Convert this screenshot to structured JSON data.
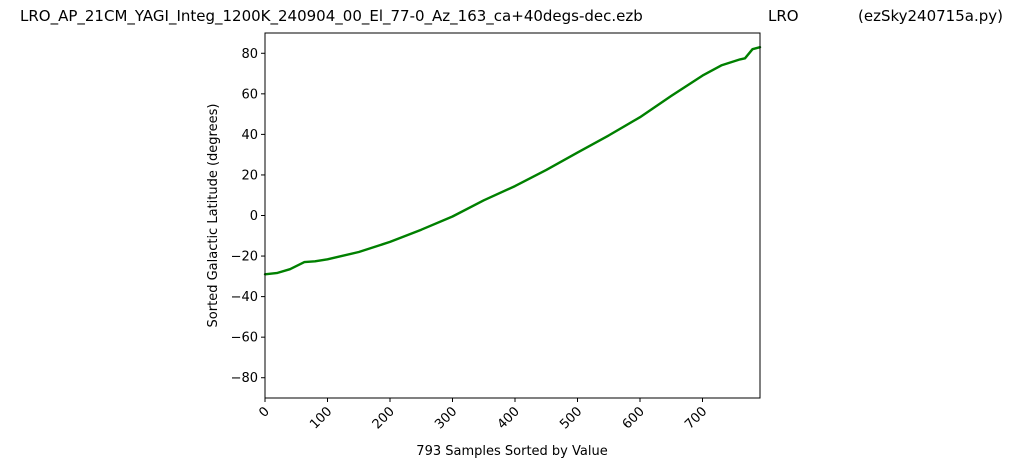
{
  "header": {
    "left": "LRO_AP_21CM_YAGI_Integ_1200K_240904_00_El_77-0_Az_163_ca+40degs-dec.ezb",
    "middle": "LRO",
    "right": "(ezSky240715a.py)"
  },
  "chart_data": {
    "type": "line",
    "xlabel": "793 Samples Sorted by Value",
    "ylabel": "Sorted Galactic Latitude (degrees)",
    "xlim": [
      0,
      792
    ],
    "ylim": [
      -90,
      90
    ],
    "xticks": [
      0,
      100,
      200,
      300,
      400,
      500,
      600,
      700
    ],
    "yticks": [
      -80,
      -60,
      -40,
      -20,
      0,
      20,
      40,
      60,
      80
    ],
    "grid": false,
    "series": [
      {
        "color": "#008000",
        "x": [
          0,
          20,
          40,
          63,
          80,
          100,
          150,
          200,
          250,
          300,
          350,
          400,
          450,
          500,
          550,
          600,
          650,
          700,
          730,
          760,
          768,
          780,
          792
        ],
        "y": [
          -29,
          -28.3,
          -26.5,
          -23,
          -22.6,
          -21.6,
          -18,
          -13,
          -7,
          -0.5,
          7.5,
          14.5,
          22.5,
          31,
          39.5,
          48.5,
          59,
          69,
          74,
          77,
          77.5,
          82,
          83
        ]
      }
    ]
  }
}
